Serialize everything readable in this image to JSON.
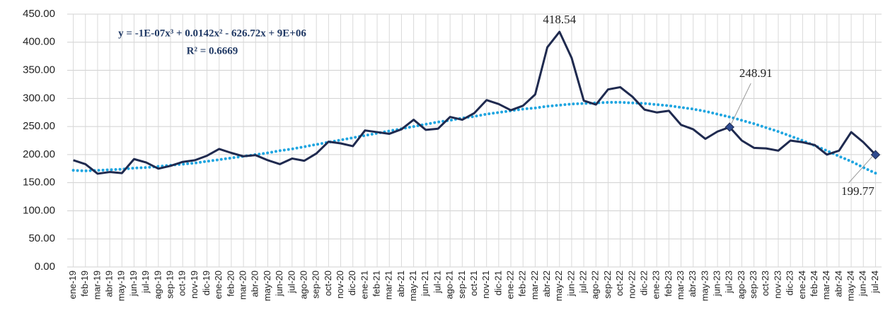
{
  "chart_data": {
    "type": "line",
    "categories": [
      "ene-19",
      "feb-19",
      "mar-19",
      "abr-19",
      "may-19",
      "jun-19",
      "jul-19",
      "ago-19",
      "sep-19",
      "oct-19",
      "nov-19",
      "dic-19",
      "ene-20",
      "feb-20",
      "mar-20",
      "abr-20",
      "may-20",
      "jun-20",
      "jul-20",
      "ago-20",
      "sep-20",
      "oct-20",
      "nov-20",
      "dic-20",
      "ene-21",
      "feb-21",
      "mar-21",
      "abr-21",
      "may-21",
      "jun-21",
      "jul-21",
      "ago-21",
      "sep-21",
      "oct-21",
      "nov-21",
      "dic-21",
      "ene-22",
      "feb-22",
      "mar-22",
      "abr-22",
      "may-22",
      "jun-22",
      "jul-22",
      "ago-22",
      "sep-22",
      "oct-22",
      "nov-22",
      "dic-22",
      "ene-23",
      "feb-23",
      "mar-23",
      "abr-23",
      "may-23",
      "jun-23",
      "jul-23",
      "ago-23",
      "sep-23",
      "oct-23",
      "nov-23",
      "dic-23",
      "ene-24",
      "feb-24",
      "mar-24",
      "abr-24",
      "may-24",
      "jun-24",
      "jul-24"
    ],
    "series": [
      {
        "color": "#1f2a4f",
        "values": [
          190,
          183,
          166,
          169,
          167,
          192,
          186,
          175,
          180,
          187,
          190,
          198,
          210,
          203,
          197,
          199,
          190,
          183,
          193,
          189,
          202,
          223,
          220,
          215,
          243,
          240,
          237,
          245,
          262,
          244,
          246,
          267,
          262,
          274,
          297,
          290,
          279,
          287,
          307,
          391,
          418.54,
          372,
          296,
          289,
          316,
          320,
          303,
          280,
          275,
          278,
          253,
          245,
          228,
          241,
          248.91,
          225,
          212,
          211,
          207,
          225,
          222,
          217,
          200,
          207,
          240,
          222,
          199.77
        ],
        "value_labels": [
          null,
          null,
          null,
          null,
          null,
          null,
          null,
          null,
          null,
          null,
          null,
          null,
          null,
          null,
          null,
          null,
          null,
          null,
          null,
          null,
          null,
          null,
          null,
          null,
          null,
          null,
          null,
          null,
          null,
          null,
          null,
          null,
          null,
          null,
          null,
          null,
          null,
          null,
          null,
          null,
          "418.54",
          null,
          null,
          null,
          null,
          null,
          null,
          null,
          null,
          null,
          null,
          null,
          null,
          null,
          "248.91",
          null,
          null,
          null,
          null,
          null,
          null,
          null,
          null,
          null,
          null,
          null,
          "199.77"
        ]
      },
      {
        "color": "#1fa5e0",
        "style": "dotted",
        "values": [
          172,
          171,
          172,
          173,
          174,
          176,
          177,
          179,
          181,
          183,
          185,
          188,
          191,
          194,
          197,
          200,
          203,
          207,
          210,
          214,
          218,
          222,
          226,
          230,
          234,
          238,
          242,
          246,
          250,
          254,
          258,
          261,
          265,
          268,
          272,
          275,
          278,
          281,
          283,
          286,
          288,
          290,
          291,
          292,
          293,
          293,
          292,
          291,
          289,
          287,
          284,
          281,
          277,
          272,
          267,
          261,
          255,
          248,
          241,
          233,
          225,
          216,
          207,
          197,
          188,
          177,
          167
        ]
      }
    ],
    "annotations": [
      "y = -1E-07x³ + 0.0142x² - 626.72x + 9E+06",
      "R² = 0.6669"
    ],
    "ylim": [
      0,
      450
    ],
    "yticks": [
      {
        "value": 0,
        "label": "0.00"
      },
      {
        "value": 50,
        "label": "50.00"
      },
      {
        "value": 100,
        "label": "100.00"
      },
      {
        "value": 150,
        "label": "150.00"
      },
      {
        "value": 200,
        "label": "200.00"
      },
      {
        "value": 250,
        "label": "250.00"
      },
      {
        "value": 300,
        "label": "300.00"
      },
      {
        "value": 350,
        "label": "350.00"
      },
      {
        "value": 400,
        "label": "400.00"
      },
      {
        "value": 450,
        "label": "450.00"
      }
    ],
    "grid": true
  }
}
